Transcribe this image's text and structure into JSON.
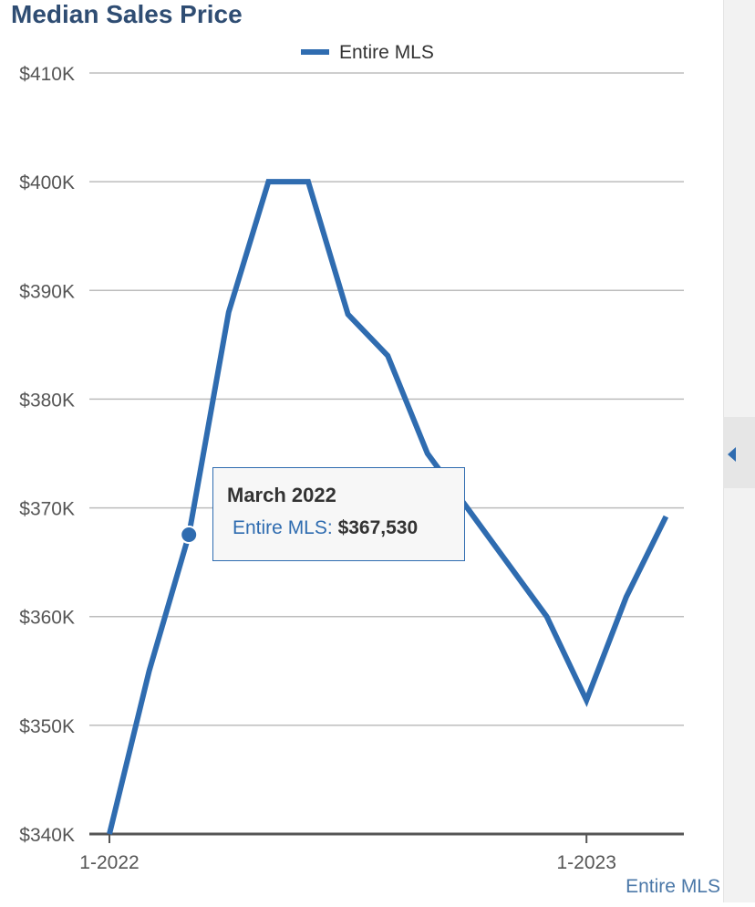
{
  "chart_data": {
    "type": "line",
    "title": "Median Sales Price",
    "legend": {
      "entries": [
        "Entire MLS"
      ],
      "placement": "top-center"
    },
    "series": [
      {
        "name": "Entire MLS",
        "color": "#2f6cb0",
        "x": [
          "2022-01",
          "2022-02",
          "2022-03",
          "2022-04",
          "2022-05",
          "2022-06",
          "2022-07",
          "2022-08",
          "2022-09",
          "2022-10",
          "2022-11",
          "2022-12",
          "2023-01",
          "2023-02",
          "2023-03"
        ],
        "values": [
          340000,
          355000,
          367530,
          388000,
          400000,
          400000,
          387800,
          384000,
          375000,
          370000,
          365000,
          360000,
          352300,
          361800,
          369200
        ]
      }
    ],
    "y_ticks": [
      "$340K",
      "$350K",
      "$360K",
      "$370K",
      "$380K",
      "$390K",
      "$400K",
      "$410K"
    ],
    "y_tick_values": [
      340000,
      350000,
      360000,
      370000,
      380000,
      390000,
      400000,
      410000
    ],
    "ylim": [
      340000,
      410000
    ],
    "x_ticks": [
      {
        "label": "1-2022",
        "index": 0
      },
      {
        "label": "1-2023",
        "index": 12
      }
    ],
    "grid": "horizontal",
    "tooltip": {
      "title": "March 2022",
      "series_label": "Entire MLS:",
      "value": "$367,530",
      "point_index": 2
    },
    "footer_legend": "Entire MLS"
  }
}
